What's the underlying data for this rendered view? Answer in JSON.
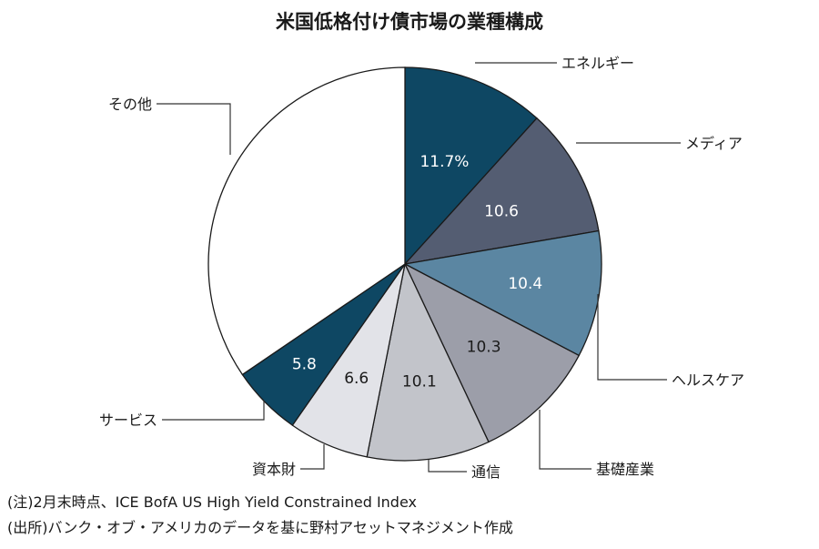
{
  "chart_data": {
    "type": "pie",
    "title": "米国低格付け債市場の業種構成",
    "slices": [
      {
        "label": "エネルギー",
        "value": 11.7,
        "display": "11.7%",
        "color": "#0e4763",
        "text_color": "#ffffff"
      },
      {
        "label": "メディア",
        "value": 10.6,
        "display": "10.6",
        "color": "#545d72",
        "text_color": "#ffffff"
      },
      {
        "label": "ヘルスケア",
        "value": 10.4,
        "display": "10.4",
        "color": "#5b86a2",
        "text_color": "#ffffff"
      },
      {
        "label": "基礎産業",
        "value": 10.3,
        "display": "10.3",
        "color": "#9c9ea9",
        "text_color": "#1a1a1a"
      },
      {
        "label": "通信",
        "value": 10.1,
        "display": "10.1",
        "color": "#c2c4ca",
        "text_color": "#1a1a1a"
      },
      {
        "label": "資本財",
        "value": 6.6,
        "display": "6.6",
        "color": "#e2e3e8",
        "text_color": "#1a1a1a"
      },
      {
        "label": "サービス",
        "value": 5.8,
        "display": "5.8",
        "color": "#0e4763",
        "text_color": "#ffffff"
      },
      {
        "label": "その他",
        "value": 34.5,
        "display": "",
        "color": "#ffffff",
        "text_color": "#1a1a1a"
      }
    ],
    "start": "12 o'clock",
    "direction": "clockwise"
  },
  "notes": {
    "note": "(注)2月末時点、ICE BofA US High Yield Constrained Index",
    "source": "(出所)バンク・オブ・アメリカのデータを基に野村アセットマネジメント作成"
  }
}
